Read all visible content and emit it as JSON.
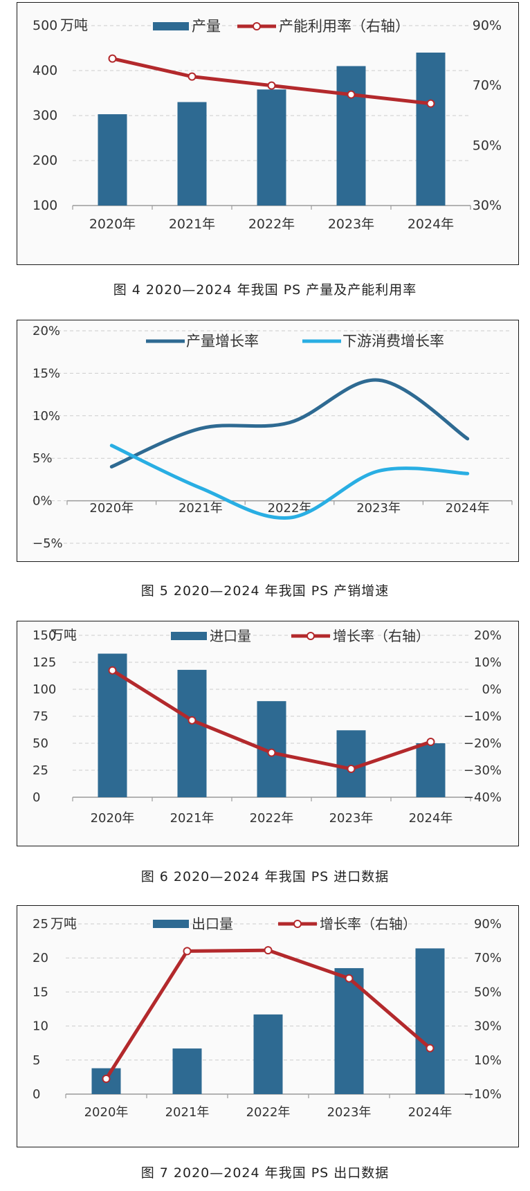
{
  "colors": {
    "bar": "#2e6a92",
    "line_red": "#b3292c",
    "line_dark_blue": "#2e6a92",
    "line_light_blue": "#29aee3",
    "grid": "#cccccc"
  },
  "chart_data": [
    {
      "type": "bar",
      "caption": "图 4  2020—2024 年我国 PS 产量及产能利用率",
      "unit": "万吨",
      "categories": [
        "2020年",
        "2021年",
        "2022年",
        "2023年",
        "2024年"
      ],
      "series": [
        {
          "name": "产量",
          "type": "bar",
          "axis": "left",
          "values": [
            303,
            330,
            358,
            410,
            440
          ]
        },
        {
          "name": "产能利用率（右轴）",
          "type": "line",
          "axis": "right",
          "values": [
            79,
            73,
            70,
            67,
            64
          ]
        }
      ],
      "ylim": [
        100,
        500
      ],
      "y_ticks": [
        100,
        200,
        300,
        400,
        500
      ],
      "y2lim": [
        30,
        90
      ],
      "y2_ticks": [
        "30%",
        "50%",
        "70%",
        "90%"
      ],
      "legend_position": "top"
    },
    {
      "type": "line",
      "caption": "图 5  2020—2024 年我国 PS 产销增速",
      "categories": [
        "2020年",
        "2021年",
        "2022年",
        "2023年",
        "2024年"
      ],
      "series": [
        {
          "name": "产量增长率",
          "values": [
            4,
            8.5,
            9.2,
            14.2,
            7.3
          ]
        },
        {
          "name": "下游消费增长率",
          "values": [
            6.5,
            1.5,
            -2,
            3.5,
            3.2
          ]
        }
      ],
      "ylim": [
        -5,
        20
      ],
      "y_ticks": [
        "-5%",
        "0%",
        "5%",
        "10%",
        "15%",
        "20%"
      ],
      "smooth": true,
      "legend_position": "top"
    },
    {
      "type": "bar",
      "caption": "图 6  2020—2024 年我国 PS 进口数据",
      "unit": "万吨",
      "categories": [
        "2020年",
        "2021年",
        "2022年",
        "2023年",
        "2024年"
      ],
      "series": [
        {
          "name": "进口量",
          "type": "bar",
          "axis": "left",
          "values": [
            133,
            118,
            89,
            62,
            50
          ]
        },
        {
          "name": "增长率（右轴）",
          "type": "line",
          "axis": "right",
          "values": [
            7,
            -11.5,
            -23.5,
            -29.5,
            -19.5
          ]
        }
      ],
      "ylim": [
        0,
        150
      ],
      "y_ticks": [
        0,
        25,
        50,
        75,
        100,
        125,
        150
      ],
      "y2lim": [
        -40,
        20
      ],
      "y2_ticks": [
        "-40%",
        "-30%",
        "-20%",
        "-10%",
        "0%",
        "10%",
        "20%"
      ],
      "legend_position": "top"
    },
    {
      "type": "bar",
      "caption": "图 7  2020—2024 年我国 PS 出口数据",
      "unit": "万吨",
      "categories": [
        "2020年",
        "2021年",
        "2022年",
        "2023年",
        "2024年"
      ],
      "series": [
        {
          "name": "出口量",
          "type": "bar",
          "axis": "left",
          "values": [
            3.8,
            6.7,
            11.7,
            18.5,
            21.4
          ]
        },
        {
          "name": "增长率（右轴）",
          "type": "line",
          "axis": "right",
          "values": [
            -1,
            74,
            74.5,
            58,
            17
          ]
        }
      ],
      "ylim": [
        0,
        25
      ],
      "y_ticks": [
        0,
        5,
        10,
        15,
        20,
        25
      ],
      "y2lim": [
        -10,
        90
      ],
      "y2_ticks": [
        "-10%",
        "10%",
        "30%",
        "50%",
        "70%",
        "90%"
      ],
      "legend_position": "top"
    }
  ]
}
